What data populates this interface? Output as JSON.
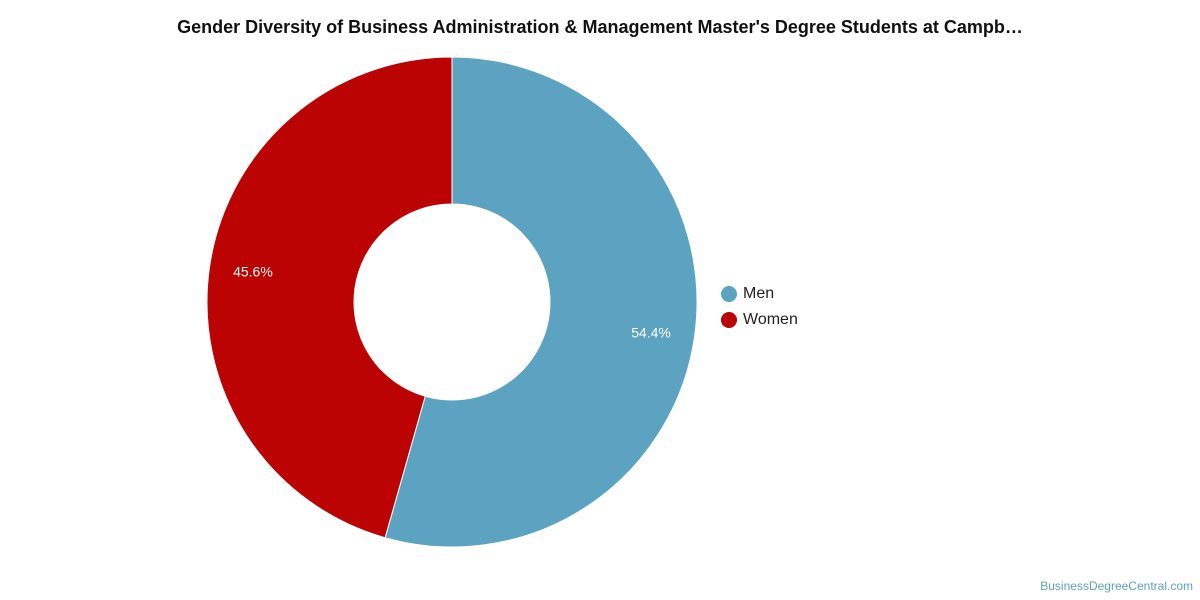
{
  "chart_data": {
    "type": "pie",
    "title": "Gender Diversity of Business Administration & Management Master's Degree Students at Campb…",
    "series": [
      {
        "name": "Men",
        "value": 54.4,
        "label": "54.4%",
        "color": "#5ba3c0"
      },
      {
        "name": "Women",
        "value": 45.6,
        "label": "45.6%",
        "color": "#bb0303"
      }
    ],
    "legend": {
      "position": "right"
    }
  },
  "watermark": "BusinessDegreeCentral.com"
}
